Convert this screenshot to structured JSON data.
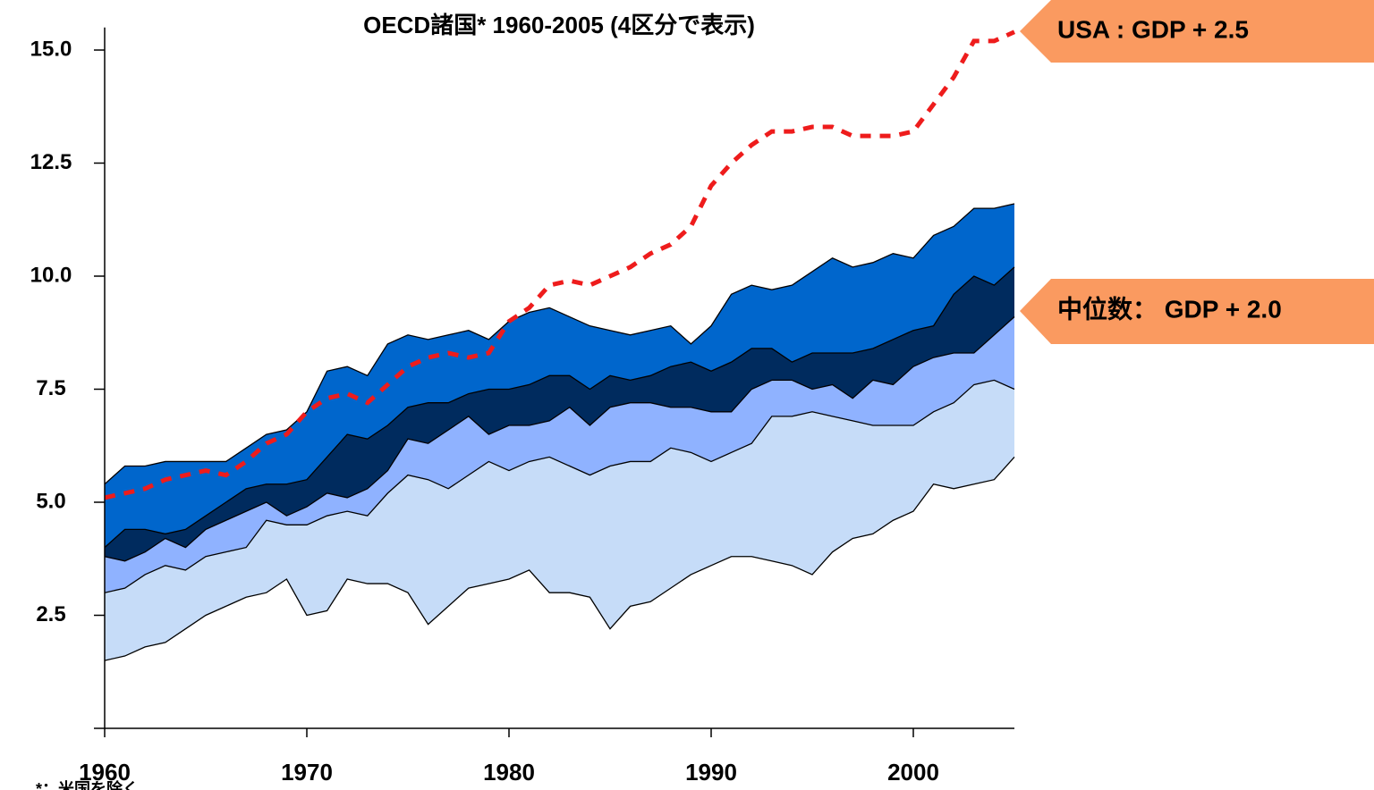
{
  "chart_data": {
    "type": "area-band",
    "title": "OECD諸国*   1960-2005 (4区分で表示)",
    "footnote": "*：米国を除く",
    "x": [
      1960,
      1961,
      1962,
      1963,
      1964,
      1965,
      1966,
      1967,
      1968,
      1969,
      1970,
      1971,
      1972,
      1973,
      1974,
      1975,
      1976,
      1977,
      1978,
      1979,
      1980,
      1981,
      1982,
      1983,
      1984,
      1985,
      1986,
      1987,
      1988,
      1989,
      1990,
      1991,
      1992,
      1993,
      1994,
      1995,
      1996,
      1997,
      1998,
      1999,
      2000,
      2001,
      2002,
      2003,
      2004,
      2005
    ],
    "xlim": [
      1960,
      2005
    ],
    "xticks": [
      1960,
      1970,
      1980,
      1990,
      2000
    ],
    "ylim": [
      0,
      15.5
    ],
    "yticks": [
      2.5,
      {
        "value": 5,
        "label": "5.0"
      },
      7.5,
      {
        "value": 10,
        "label": "10.0"
      },
      12.5,
      {
        "value": 15,
        "label": "15.0"
      }
    ],
    "line_color": "#000000",
    "series": [
      {
        "fill": "#c6dcf8",
        "values": [
          1.5,
          1.6,
          1.8,
          1.9,
          2.2,
          2.5,
          2.7,
          2.9,
          3.0,
          3.3,
          2.5,
          2.6,
          3.3,
          3.2,
          3.2,
          3.0,
          2.3,
          2.7,
          3.1,
          3.2,
          3.3,
          3.5,
          3.0,
          3.0,
          2.9,
          2.2,
          2.7,
          2.8,
          3.1,
          3.4,
          3.6,
          3.8,
          3.8,
          3.7,
          3.6,
          3.4,
          3.9,
          4.2,
          4.3,
          4.6,
          4.8,
          5.4,
          5.3,
          5.4,
          5.5,
          6.0
        ]
      },
      {
        "fill": "#8fb2ff",
        "values": [
          3.0,
          3.1,
          3.4,
          3.6,
          3.5,
          3.8,
          3.9,
          4.0,
          4.6,
          4.5,
          4.5,
          4.7,
          4.8,
          4.7,
          5.2,
          5.6,
          5.5,
          5.3,
          5.6,
          5.9,
          5.7,
          5.9,
          6.0,
          5.8,
          5.6,
          5.8,
          5.9,
          5.9,
          6.2,
          6.1,
          5.9,
          6.1,
          6.3,
          6.9,
          6.9,
          7.0,
          6.9,
          6.8,
          6.7,
          6.7,
          6.7,
          7.0,
          7.2,
          7.6,
          7.7,
          7.5
        ]
      },
      {
        "fill": "#002b5e",
        "values": [
          3.8,
          3.7,
          3.9,
          4.2,
          4.0,
          4.4,
          4.6,
          4.8,
          5.0,
          4.7,
          4.9,
          5.2,
          5.1,
          5.3,
          5.7,
          6.4,
          6.3,
          6.6,
          6.9,
          6.5,
          6.7,
          6.7,
          6.8,
          7.1,
          6.7,
          7.1,
          7.2,
          7.2,
          7.1,
          7.1,
          7.0,
          7.0,
          7.5,
          7.7,
          7.7,
          7.5,
          7.6,
          7.3,
          7.7,
          7.6,
          8.0,
          8.2,
          8.3,
          8.3,
          8.7,
          9.1
        ]
      },
      {
        "fill": "#0066cc",
        "values": [
          4.0,
          4.4,
          4.4,
          4.3,
          4.4,
          4.7,
          5.0,
          5.3,
          5.4,
          5.4,
          5.5,
          6.0,
          6.5,
          6.4,
          6.7,
          7.1,
          7.2,
          7.2,
          7.4,
          7.5,
          7.5,
          7.6,
          7.8,
          7.8,
          7.5,
          7.8,
          7.7,
          7.8,
          8.0,
          8.1,
          7.9,
          8.1,
          8.4,
          8.4,
          8.1,
          8.3,
          8.3,
          8.3,
          8.4,
          8.6,
          8.8,
          8.9,
          9.6,
          10.0,
          9.8,
          10.2
        ]
      },
      {
        "values": [
          5.4,
          5.8,
          5.8,
          5.9,
          5.9,
          5.9,
          5.9,
          6.2,
          6.5,
          6.6,
          7.0,
          7.9,
          8.0,
          7.8,
          8.5,
          8.7,
          8.6,
          8.7,
          8.8,
          8.6,
          9.0,
          9.2,
          9.3,
          9.1,
          8.9,
          8.8,
          8.7,
          8.8,
          8.9,
          8.5,
          8.9,
          9.6,
          9.8,
          9.7,
          9.8,
          10.1,
          10.4,
          10.2,
          10.3,
          10.5,
          10.4,
          10.9,
          11.1,
          11.5,
          11.5,
          11.6
        ]
      },
      {
        "color": "#ee1c1c",
        "dashed": true,
        "values": [
          5.1,
          5.2,
          5.3,
          5.5,
          5.6,
          5.7,
          5.6,
          5.9,
          6.3,
          6.5,
          7.0,
          7.3,
          7.4,
          7.2,
          7.6,
          8.0,
          8.2,
          8.3,
          8.2,
          8.3,
          9.0,
          9.3,
          9.8,
          9.9,
          9.8,
          10.0,
          10.2,
          10.5,
          10.7,
          11.1,
          12.0,
          12.5,
          12.9,
          13.2,
          13.2,
          13.3,
          13.3,
          13.1,
          13.1,
          13.1,
          13.2,
          13.8,
          14.4,
          15.2,
          15.2,
          15.4
        ]
      }
    ],
    "annotations": [
      {
        "text": "USA : GDP + 2.5",
        "color": "#fa9a60"
      },
      {
        "text": "中位数： GDP + 2.0",
        "color": "#fa9a60"
      }
    ]
  }
}
